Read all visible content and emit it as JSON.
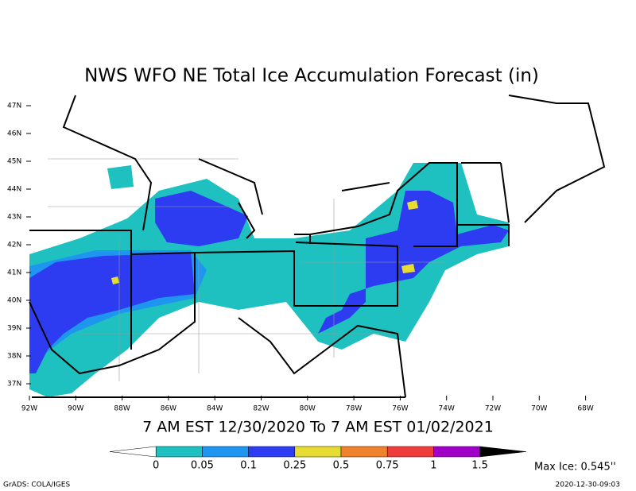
{
  "title": "NWS WFO NE Total Ice Accumulation Forecast (in)",
  "period": "7 AM EST 12/30/2020 To 7 AM EST 01/02/2021",
  "latitude_labels": [
    "47N",
    "46N",
    "45N",
    "44N",
    "43N",
    "42N",
    "41N",
    "40N",
    "39N",
    "38N",
    "37N"
  ],
  "longitude_labels": [
    "92W",
    "90W",
    "88W",
    "86W",
    "84W",
    "82W",
    "80W",
    "78W",
    "76W",
    "74W",
    "72W",
    "70W",
    "68W"
  ],
  "legend": {
    "colors": [
      "#ffffff",
      "#1ec0c0",
      "#1e96f0",
      "#2d3cf0",
      "#e6dc32",
      "#f0822c",
      "#f03c3c",
      "#a000c8",
      "#000000"
    ],
    "labels": [
      0,
      0.05,
      0.1,
      0.25,
      0.5,
      0.75,
      1,
      1.5
    ]
  },
  "max_ice": "Max Ice: 0.545''",
  "credit": "GrADS: COLA/IGES",
  "timestamp": "2020-12-30-09:03"
}
